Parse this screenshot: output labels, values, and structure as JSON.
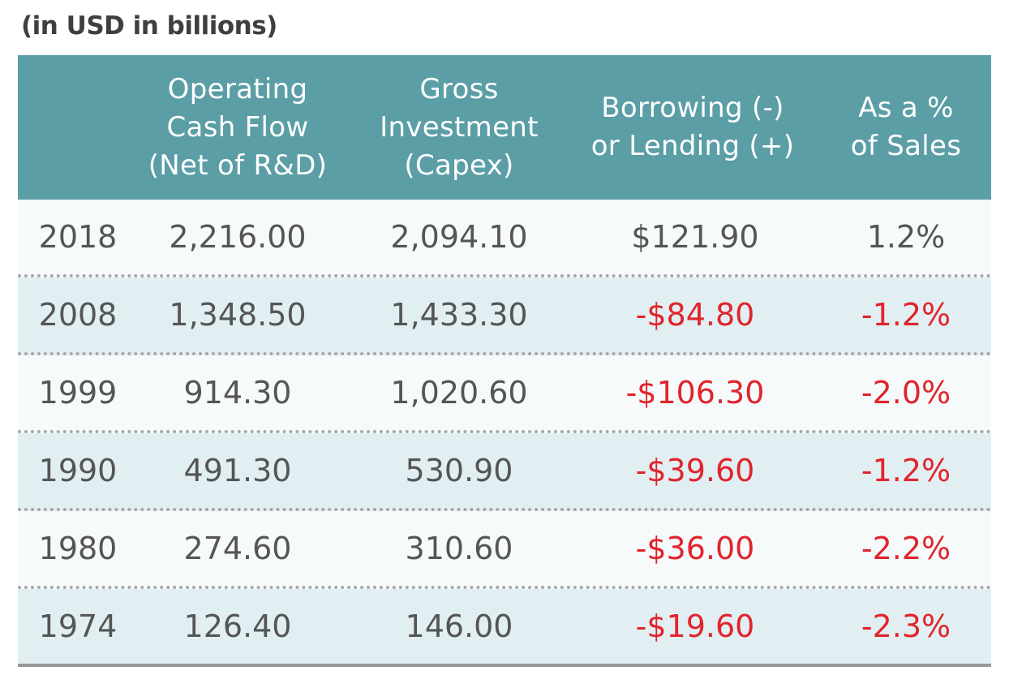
{
  "caption": "(in USD in billions)",
  "chart_data": {
    "type": "table",
    "columns": [
      "",
      "Operating\nCash Flow\n(Net of R&D)",
      "Gross\nInvestment\n(Capex)",
      "Borrowing (-)\nor Lending (+)",
      "As a %\nof Sales"
    ],
    "rows": [
      [
        "2018",
        "2,216.00",
        "2,094.10",
        "$121.90",
        "1.2%"
      ],
      [
        "2008",
        "1,348.50",
        "1,433.30",
        "-$84.80",
        "-1.2%"
      ],
      [
        "1999",
        "914.30",
        "1,020.60",
        "-$106.30",
        "-2.0%"
      ],
      [
        "1990",
        "491.30",
        "530.90",
        "-$39.60",
        "-1.2%"
      ],
      [
        "1980",
        "274.60",
        "310.60",
        "-$36.00",
        "-2.2%"
      ],
      [
        "1974",
        "126.40",
        "146.00",
        "-$19.60",
        "-2.3%"
      ]
    ]
  },
  "colors": {
    "header_bg": "#5b9ea6",
    "row_light": "#f6fafb",
    "row_dark": "#e2eff2",
    "negative": "#e1242c",
    "text": "#555555"
  }
}
